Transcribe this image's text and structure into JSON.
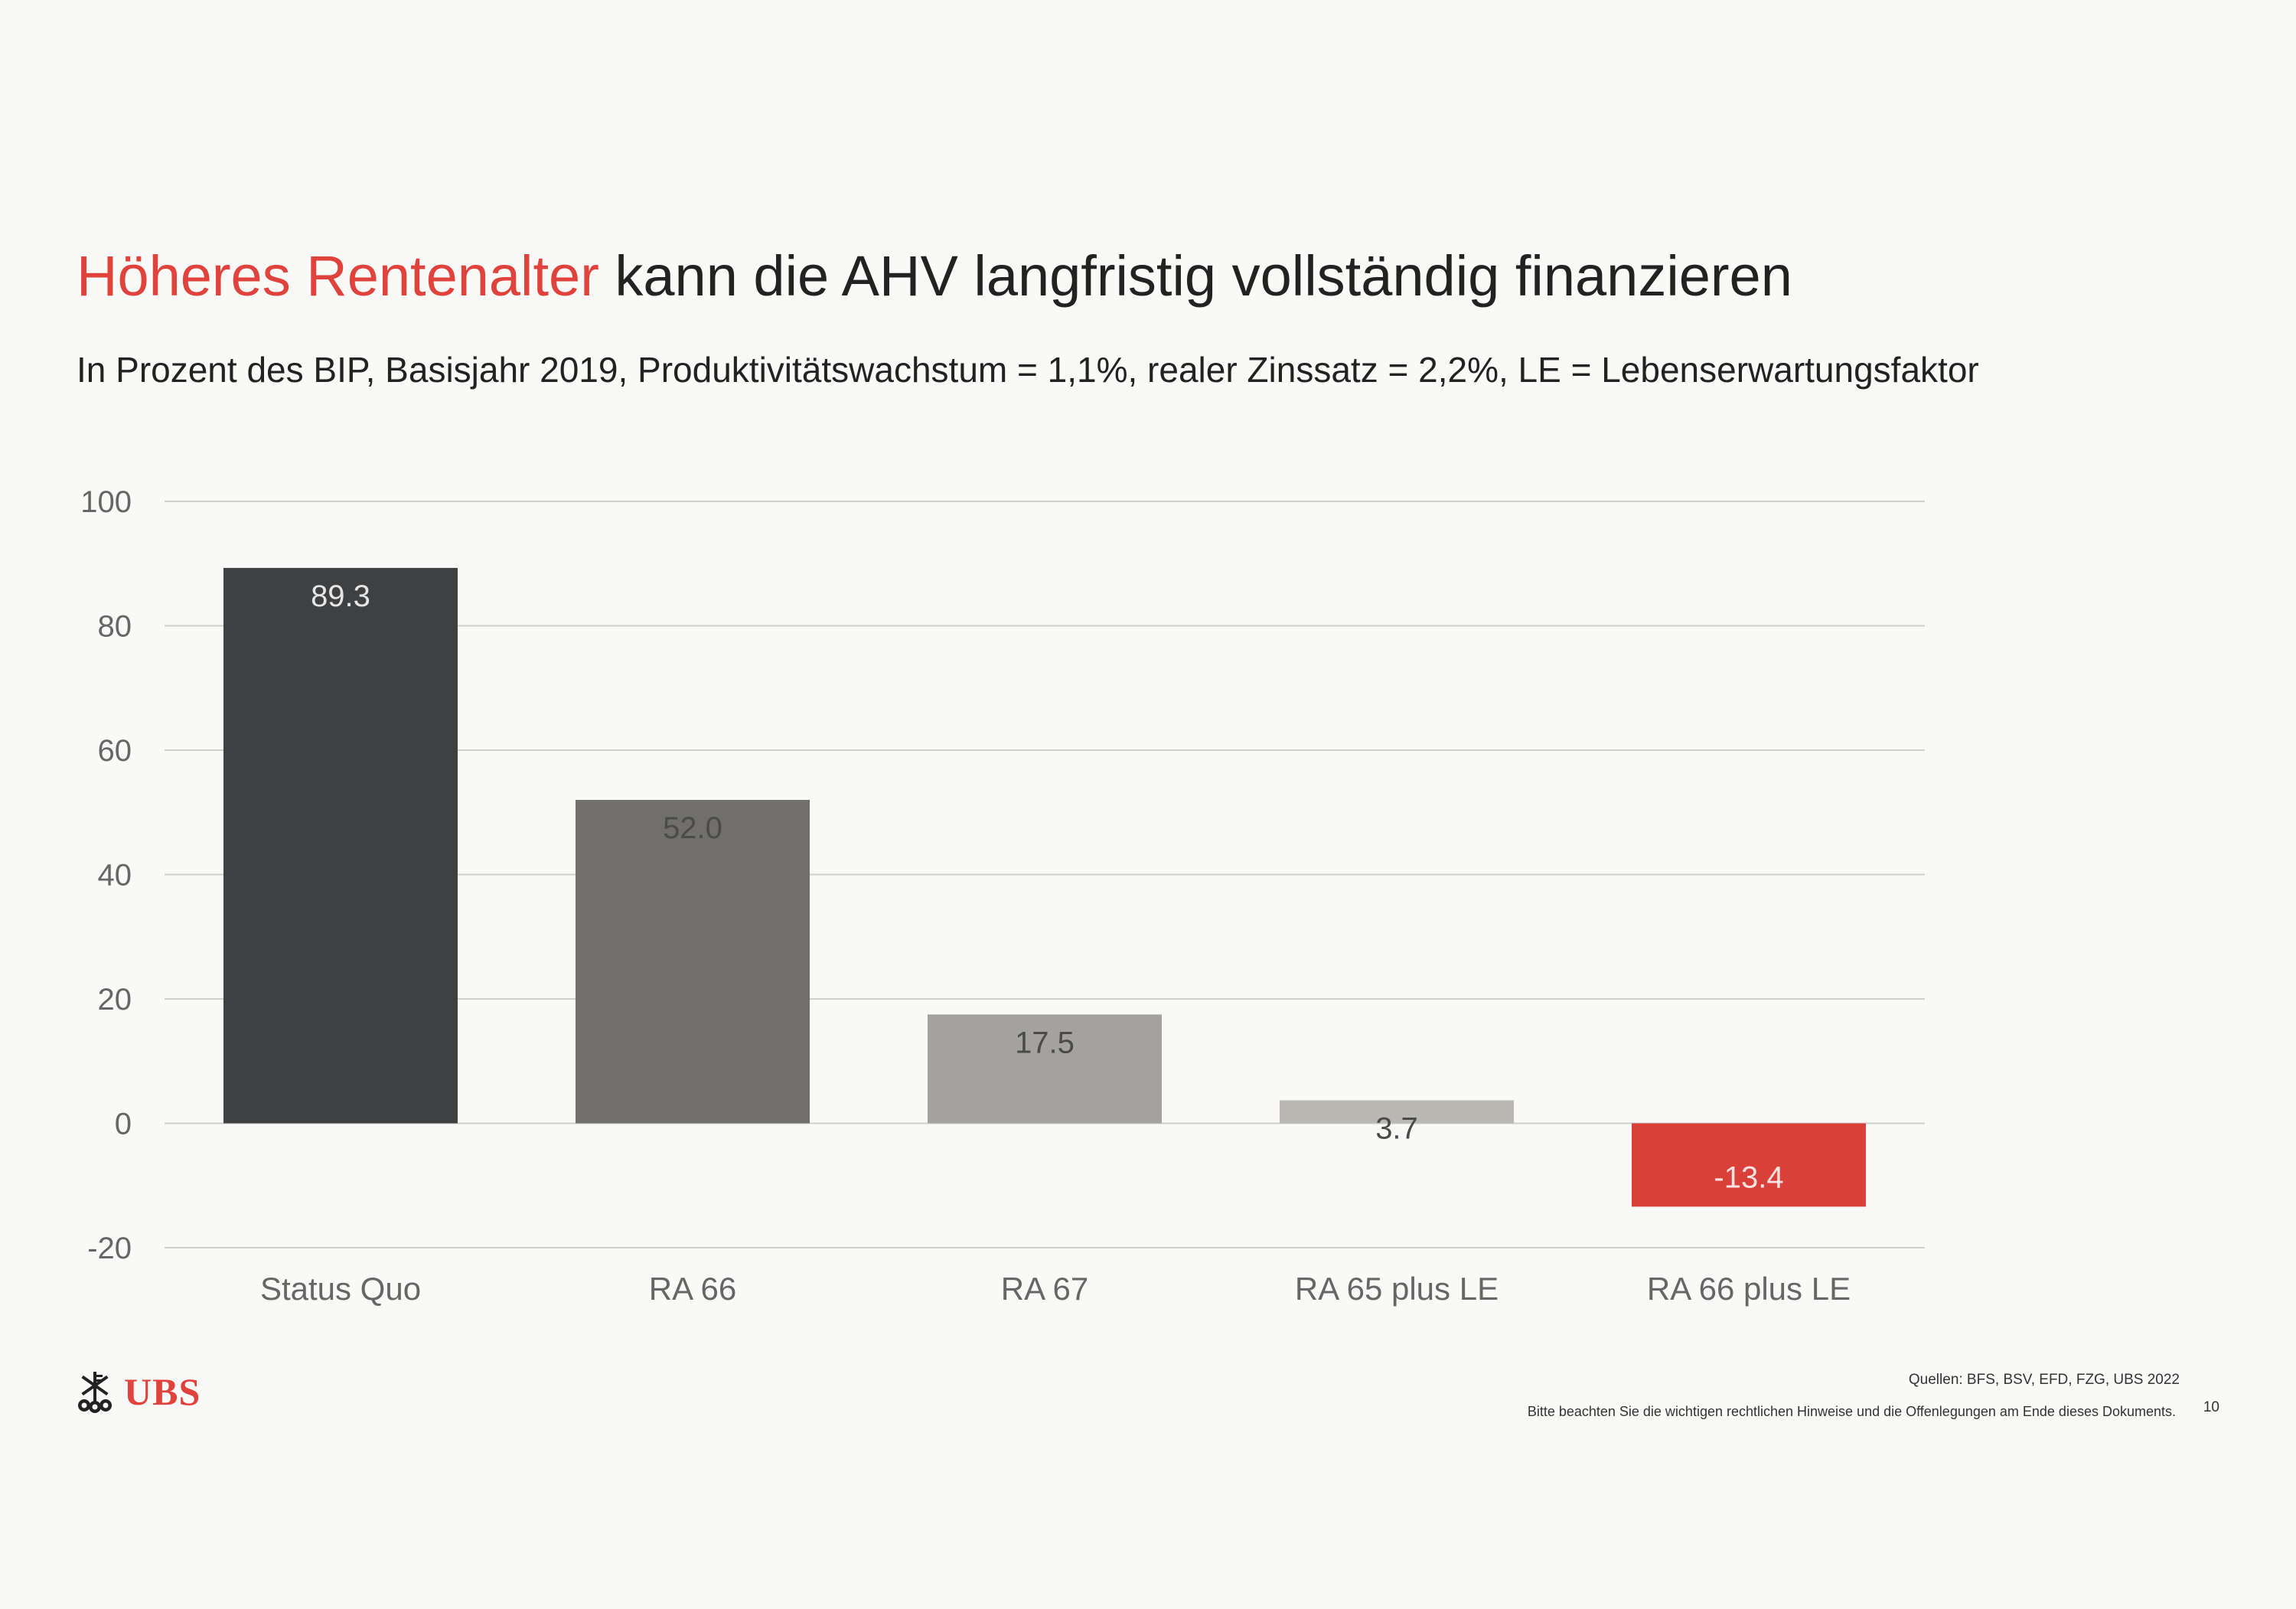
{
  "header": {
    "title_accent": "Höheres Rentenalter",
    "title_rest": "kann die AHV langfristig vollständig finanzieren",
    "subtitle": "In Prozent des BIP, Basisjahr 2019, Produktivitätswachstum = 1,1%, realer Zinssatz = 2,2%, LE = Lebenserwartungsfaktor"
  },
  "chart_data": {
    "type": "bar",
    "title": "",
    "xlabel": "",
    "ylabel": "",
    "categories": [
      "Status Quo",
      "RA 66",
      "RA 67",
      "RA 65 plus LE",
      "RA 66 plus LE"
    ],
    "values": [
      89.3,
      52.0,
      17.5,
      3.7,
      -13.4
    ],
    "value_labels": [
      "89.3",
      "52.0",
      "17.5",
      "3.7",
      "-13.4"
    ],
    "ylim": [
      -20,
      100
    ],
    "yticks": [
      100,
      80,
      60,
      40,
      20,
      0,
      -20
    ],
    "grid": true,
    "legend": "none",
    "bar_colors": [
      "#3f4042",
      "#706f6c",
      "#a3a29e",
      "#b9b8b3",
      "#d9403a"
    ],
    "value_label_colors": [
      "#e6e6e6",
      "#4a4a4a",
      "#4a4a4a",
      "#4a4a4a",
      "#fbe2e0"
    ]
  },
  "branding": {
    "logo_text": "UBS",
    "accent_color": "#e0423c"
  },
  "footer": {
    "sources": "Quellen: BFS, BSV, EFD, FZG, UBS 2022",
    "disclaimer": "Bitte beachten Sie die wichtigen rechtlichen Hinweise und die Offenlegungen am Ende dieses Dokuments.",
    "page_number": "10"
  }
}
